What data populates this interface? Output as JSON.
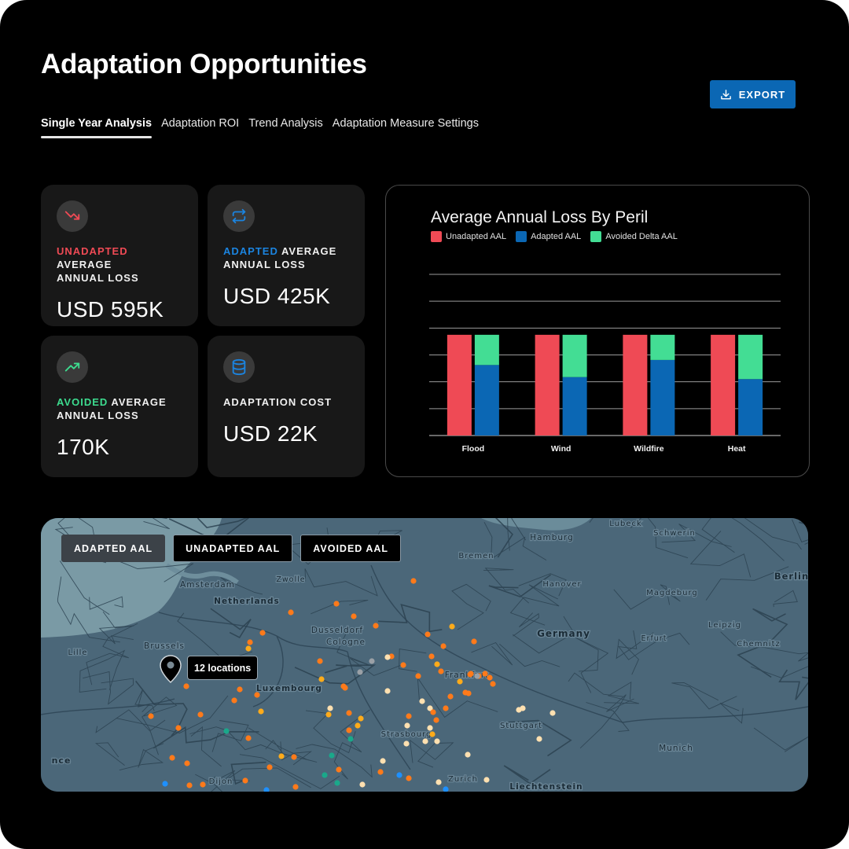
{
  "header": {
    "title": "Adaptation Opportunities",
    "export_label": "EXPORT"
  },
  "tabs": [
    {
      "label": "Single Year Analysis",
      "active": true
    },
    {
      "label": "Adaptation ROI"
    },
    {
      "label": "Trend Analysis"
    },
    {
      "label": "Adaptation Measure Settings"
    }
  ],
  "cards": [
    {
      "icon": "trend-down-icon",
      "accent": "UNADAPTED",
      "accent_color": "#ef4a55",
      "label_rest": " AVERAGE",
      "label_line2": "ANNUAL LOSS",
      "value": "USD 595K"
    },
    {
      "icon": "repeat-icon",
      "accent": "ADAPTED",
      "accent_color": "#1b84e0",
      "label_rest": " AVERAGE",
      "label_line2": "ANNUAL LOSS",
      "value": "USD 425K"
    },
    {
      "icon": "trend-up-icon",
      "accent": "AVOIDED",
      "accent_color": "#3ddc8f",
      "label_rest": " AVERAGE",
      "label_line2": "ANNUAL LOSS",
      "value": "170K"
    },
    {
      "icon": "database-icon",
      "accent": "",
      "label_rest": "ADAPTATION COST",
      "label_line2": "",
      "value": "USD 22K"
    }
  ],
  "chart_data": {
    "type": "bar",
    "title": "Average Annual Loss By Peril",
    "categories": [
      "Flood",
      "Wind",
      "Wildfire",
      "Heat"
    ],
    "series": [
      {
        "name": "Unadapted AAL",
        "color": "#ef4a55",
        "values": [
          100,
          100,
          100,
          100
        ]
      },
      {
        "name": "Adapted AAL",
        "color": "#0b67b4",
        "values": [
          70,
          58,
          75,
          56
        ]
      },
      {
        "name": "Avoided Delta AAL",
        "color": "#43dd94",
        "values": [
          30,
          42,
          25,
          44
        ]
      }
    ],
    "stacked_series": [
      "Adapted AAL",
      "Avoided Delta AAL"
    ],
    "ylim": [
      0,
      160
    ],
    "grid": true,
    "legend_position": "top-left"
  },
  "map": {
    "buttons": [
      {
        "label": "ADAPTED AAL",
        "selected": true
      },
      {
        "label": "UNADAPTED AAL"
      },
      {
        "label": "AVOIDED AAL"
      }
    ],
    "cluster_label": "12 locations",
    "place_labels": [
      "Lubeck",
      "Schwerin",
      "Hamburg",
      "Bremen",
      "Berlin",
      "Amsterdam",
      "Zwolle",
      "Hanover",
      "Magdeburg",
      "Netherlands",
      "Dusseldorf",
      "Cologne",
      "Germany",
      "Leipzig",
      "Lille",
      "Brussels",
      "Erfurt",
      "Chemnitz",
      "Luxembourg",
      "Frankfurt",
      "Stuttgart",
      "Strasbourg",
      "Munich",
      "nce",
      "Dijon",
      "Zurich",
      "Liechtenstein"
    ],
    "colors": {
      "orange": "#ff7a1a",
      "amber": "#ffab1a",
      "cream": "#ffe0b0",
      "teal": "#1aa88a",
      "blue": "#1e90ff",
      "grey": "#9aa0a6"
    }
  }
}
